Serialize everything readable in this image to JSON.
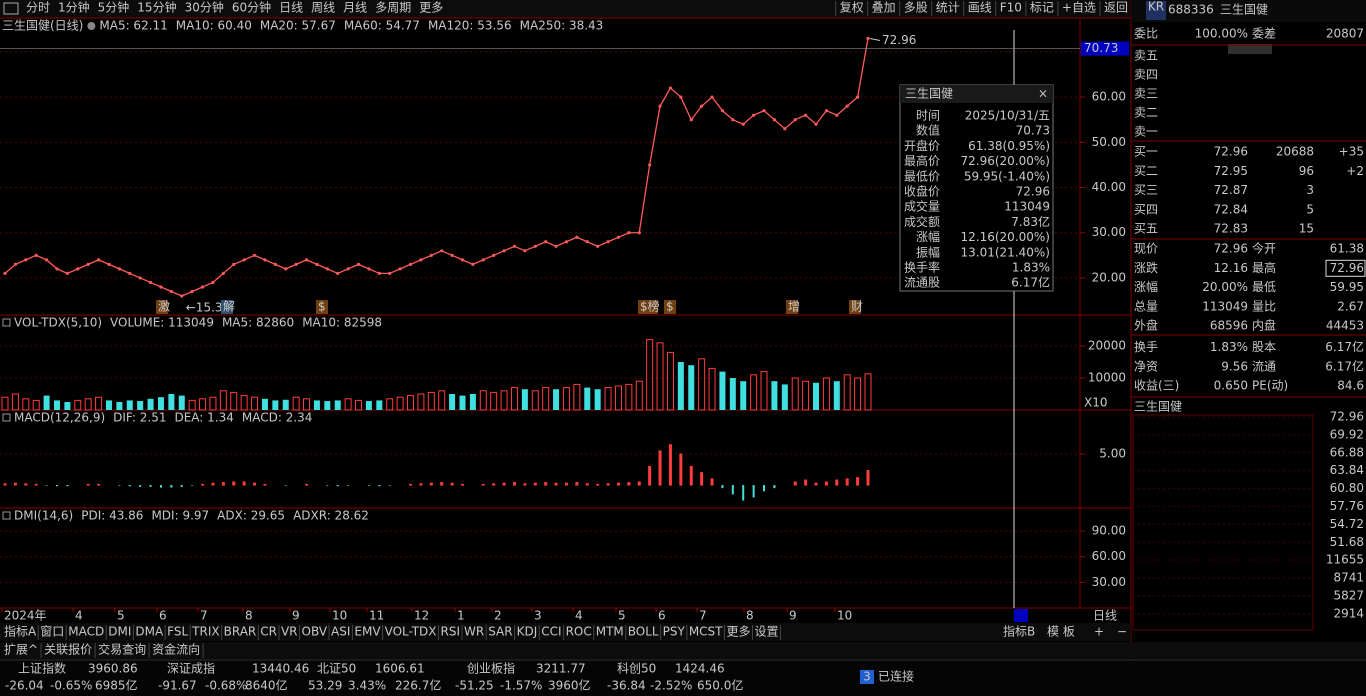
{
  "toolbar": {
    "tabs": [
      "分时",
      "1分钟",
      "5分钟",
      "15分钟",
      "30分钟",
      "60分钟",
      "日线",
      "周线",
      "月线",
      "多周期",
      "更多"
    ],
    "buttons": [
      "复权",
      "叠加",
      "多股",
      "统计",
      "画线",
      "F10",
      "标记",
      "+自选",
      "返回"
    ]
  },
  "chart_data": [
    {
      "type": "line",
      "title": "三生国健(日线)",
      "legend": [
        {
          "name": "MA5: 62.11",
          "color": "#ffffff"
        },
        {
          "name": "MA10: 60.40",
          "color": "#ffff00"
        },
        {
          "name": "MA20: 57.67",
          "color": "#ff44ff"
        },
        {
          "name": "MA60: 54.77",
          "color": "#00ff00"
        },
        {
          "name": "MA120: 53.56",
          "color": "#e0e0e0"
        },
        {
          "name": "MA250: 38.43",
          "color": "#3355ff"
        }
      ],
      "color": "#ff5a5a",
      "values": [
        21,
        23,
        24,
        25,
        24,
        22,
        21,
        22,
        23,
        24,
        23,
        22,
        21,
        20,
        19,
        18,
        17,
        16,
        17,
        18,
        19,
        21,
        23,
        24,
        25,
        24,
        23,
        22,
        23,
        24,
        23,
        22,
        21,
        22,
        23,
        22,
        21,
        21,
        22,
        23,
        24,
        25,
        26,
        25,
        24,
        23,
        24,
        25,
        26,
        27,
        26,
        27,
        28,
        27,
        28,
        29,
        28,
        27,
        28,
        29,
        30,
        30,
        45,
        58,
        62,
        60,
        55,
        58,
        60,
        57,
        55,
        54,
        56,
        57,
        55,
        53,
        55,
        56,
        54,
        57,
        56,
        58,
        60,
        72.96
      ],
      "ylim": [
        11.8,
        77.5
      ],
      "yticks": [
        {
          "value": 70,
          "label": "70.00"
        },
        {
          "value": 60,
          "label": "60.00"
        },
        {
          "value": 50,
          "label": "50.00"
        },
        {
          "value": 40,
          "label": "40.00"
        },
        {
          "value": 30,
          "label": "30.00"
        },
        {
          "value": 20,
          "label": "20.00"
        }
      ],
      "current_price": 70.73,
      "annotations": [
        "72.96",
        "←15.37"
      ],
      "events": [
        "激",
        "解",
        "$",
        "$榜",
        "$",
        "增",
        "财"
      ],
      "grid": true
    },
    {
      "type": "bar",
      "title": "VOL-TDX(5,10)",
      "legend": [
        {
          "name": "VOLUME: 113049",
          "color": "#e0e0e0"
        },
        {
          "name": "MA5: 82860",
          "color": "#e0e0e0"
        },
        {
          "name": "MA10: 82598",
          "color": "#ffff00"
        }
      ],
      "values": [
        4000,
        5000,
        3500,
        3000,
        4500,
        3000,
        2500,
        3000,
        3500,
        4000,
        3000,
        2500,
        3000,
        2800,
        3500,
        4000,
        5000,
        4500,
        3000,
        3500,
        4000,
        6000,
        5500,
        4500,
        4000,
        3500,
        3000,
        3200,
        4000,
        3500,
        3000,
        2800,
        3000,
        3500,
        3000,
        2800,
        3000,
        3500,
        4000,
        4500,
        5000,
        5500,
        6000,
        5000,
        4500,
        5000,
        6000,
        5500,
        6000,
        7000,
        6500,
        6000,
        7000,
        6500,
        7000,
        8000,
        7000,
        6500,
        7000,
        7500,
        8000,
        9000,
        22000,
        21000,
        18000,
        15000,
        14000,
        16000,
        13000,
        12000,
        10000,
        9000,
        11000,
        12000,
        9000,
        8000,
        10000,
        9000,
        8500,
        10000,
        9000,
        11000,
        10000,
        11304.9
      ],
      "ylim": [
        0,
        29700
      ],
      "yticks": [
        20000,
        10000
      ],
      "unit_label": "X10",
      "grid": true
    },
    {
      "type": "bar",
      "title": "MACD(12,26,9)",
      "legend": [
        {
          "name": "DIF: 2.51",
          "color": "#e0e0e0"
        },
        {
          "name": "DEA: 1.34",
          "color": "#ffff00"
        },
        {
          "name": "MACD: 2.34",
          "color": "#ff44ff"
        }
      ],
      "values": [
        0.2,
        0.3,
        0.2,
        0.1,
        -0.1,
        -0.2,
        -0.2,
        0,
        0.1,
        0.1,
        0,
        -0.1,
        -0.2,
        -0.3,
        -0.3,
        -0.4,
        -0.4,
        -0.3,
        -0.1,
        0.1,
        0.3,
        0.4,
        0.5,
        0.5,
        0.3,
        0.1,
        0,
        -0.1,
        0,
        0.1,
        0,
        -0.1,
        -0.2,
        -0.1,
        0,
        -0.1,
        -0.2,
        -0.1,
        0,
        0.1,
        0.2,
        0.3,
        0.4,
        0.3,
        0.1,
        0,
        0.1,
        0.2,
        0.3,
        0.4,
        0.2,
        0.3,
        0.4,
        0.3,
        0.3,
        0.4,
        0.2,
        0.1,
        0.2,
        0.3,
        0.4,
        0.5,
        3,
        5.5,
        6.5,
        5,
        3,
        2,
        1,
        -0.5,
        -1.5,
        -2.5,
        -2,
        -1,
        -0.5,
        0,
        0.5,
        0.8,
        0.3,
        0.5,
        0.8,
        1,
        1.2,
        2.34
      ],
      "ylim": [
        -3.7,
        12.1
      ],
      "yticks": [
        {
          "value": 5,
          "label": "5.00"
        }
      ],
      "grid": true
    },
    {
      "type": "indicator",
      "title": "DMI(14,6)",
      "legend": [
        {
          "name": "PDI: 43.86",
          "color": "#e0e0e0"
        },
        {
          "name": "MDI: 9.97",
          "color": "#ffff00"
        },
        {
          "name": "ADX: 29.65",
          "color": "#ff44ff"
        },
        {
          "name": "ADXR: 28.62",
          "color": "#00ff00"
        }
      ],
      "ylim": [
        0,
        117
      ],
      "yticks": [
        {
          "value": 90,
          "label": "90.00"
        },
        {
          "value": 60,
          "label": "60.00"
        },
        {
          "value": 30,
          "label": "30.00"
        }
      ],
      "grid": true
    }
  ],
  "time_axis": {
    "labels": [
      "2024年",
      "4",
      "5",
      "6",
      "7",
      "8",
      "9",
      "10",
      "11",
      "12",
      "1",
      "2",
      "3",
      "4",
      "5",
      "6",
      "7",
      "8",
      "9",
      "10"
    ],
    "period": "日线"
  },
  "tooltip": {
    "title": "三生国健",
    "rows": [
      [
        "时间",
        "2025/10/31/五"
      ],
      [
        "数值",
        "70.73"
      ],
      [
        "开盘价",
        "61.38(0.95%)"
      ],
      [
        "最高价",
        "72.96(20.00%)"
      ],
      [
        "最低价",
        "59.95(-1.40%)"
      ],
      [
        "收盘价",
        "72.96"
      ],
      [
        "成交量",
        "113049"
      ],
      [
        "成交额",
        "7.83亿"
      ],
      [
        "涨幅",
        "12.16(20.00%)"
      ],
      [
        "振幅",
        "13.01(21.40%)"
      ],
      [
        "换手率",
        "1.83%"
      ],
      [
        "流通股",
        "6.17亿"
      ]
    ]
  },
  "indicator_tabs": [
    "指标A",
    "窗口",
    "MACD",
    "DMI",
    "DMA",
    "FSL",
    "TRIX",
    "BRAR",
    "CR",
    "VR",
    "OBV",
    "ASI",
    "EMV",
    "VOL-TDX",
    "RSI",
    "WR",
    "SAR",
    "KDJ",
    "CCI",
    "ROC",
    "MTM",
    "BOLL",
    "PSY",
    "MCST",
    "更多",
    "设置"
  ],
  "indicator_tabs_right": [
    "指标B",
    "模 板",
    "+",
    "−"
  ],
  "extra_tabs": [
    "扩展^",
    "关联报价",
    "交易查询",
    "资金流向"
  ],
  "quote": {
    "badge": "KR",
    "code": "688336",
    "name": "三生国健",
    "ratio": [
      "委比",
      "100.00%",
      "委差",
      "20807"
    ],
    "sell": [
      "卖五",
      "卖四",
      "卖三",
      "卖二",
      "卖一"
    ],
    "buy": [
      [
        "买一",
        "72.96",
        "20688",
        "+35"
      ],
      [
        "买二",
        "72.95",
        "96",
        "+2"
      ],
      [
        "买三",
        "72.87",
        "3",
        ""
      ],
      [
        "买四",
        "72.84",
        "5",
        ""
      ],
      [
        "买五",
        "72.83",
        "15",
        ""
      ]
    ],
    "stats": [
      [
        "现价",
        "72.96",
        "今开",
        "61.38"
      ],
      [
        "涨跌",
        "12.16",
        "最高",
        "72.96"
      ],
      [
        "涨幅",
        "20.00%",
        "最低",
        "59.95"
      ],
      [
        "总量",
        "113049",
        "量比",
        "2.67"
      ],
      [
        "外盘",
        "68596",
        "内盘",
        "44453"
      ],
      [
        "换手",
        "1.83%",
        "股本",
        "6.17亿"
      ],
      [
        "净资",
        "9.56",
        "流通",
        "6.17亿"
      ],
      [
        "收益(三)",
        "0.650",
        "PE(动)",
        "84.6"
      ]
    ]
  },
  "mini_chart": {
    "title": "三生国健",
    "price_ticks": [
      "72.96",
      "69.92",
      "66.88",
      "63.84",
      "60.80",
      "57.76",
      "54.72",
      "51.68"
    ],
    "volume_ticks": [
      "11655",
      "8741",
      "5827",
      "2914"
    ]
  },
  "status": {
    "indices": [
      {
        "name": "上证指数",
        "value": "3960.86",
        "change": "-26.04",
        "pct": "-0.65%",
        "amount": "6985亿"
      },
      {
        "name": "深证成指",
        "value": "13440.46",
        "change": "-91.67",
        "pct": "-0.68%",
        "amount": "8640亿"
      },
      {
        "name": "北证50",
        "value": "1606.61",
        "change": "53.29",
        "pct": "3.43%",
        "amount": "226.7亿"
      },
      {
        "name": "创业板指",
        "value": "3211.77",
        "change": "-51.25",
        "pct": "-1.57%",
        "amount": "3960亿"
      },
      {
        "name": "科创50",
        "value": "1424.46",
        "change": "-36.84",
        "pct": "-2.52%",
        "amount": "650.0亿"
      }
    ],
    "connections": "3",
    "connection_label": "已连接"
  }
}
